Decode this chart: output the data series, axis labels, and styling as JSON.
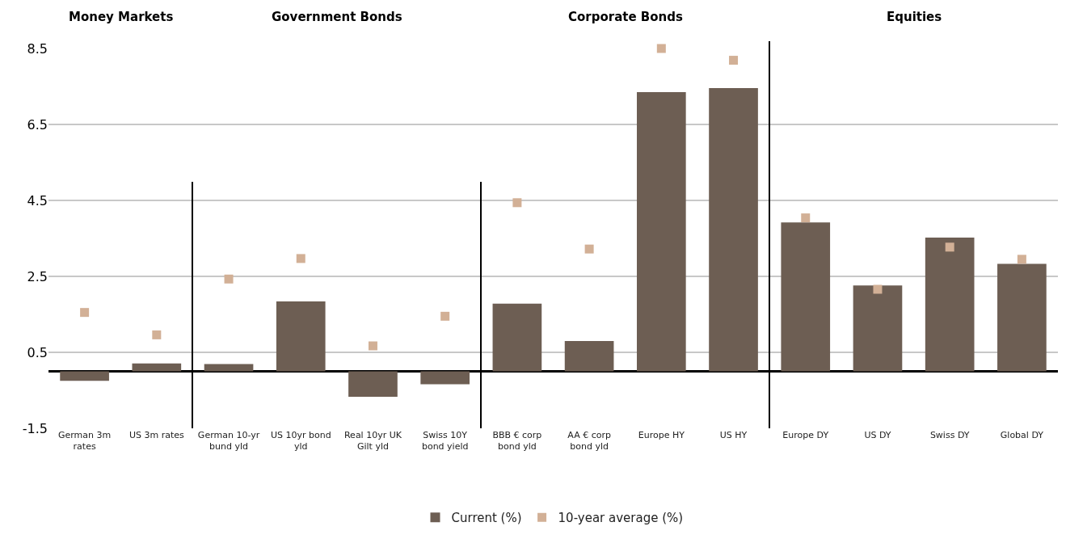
{
  "chart_data": {
    "type": "bar",
    "categories": [
      "German 3m rates",
      "US 3m rates",
      "German 10-yr bund yld",
      "US 10yr bond yld",
      "Real 10yr UK Gilt yld",
      "Swiss 10Y bond yield",
      "BBB € corp bond yld",
      "AA € corp bond yld",
      "Europe HY",
      "US HY",
      "Europe DY",
      "US DY",
      "Swiss DY",
      "Global DY"
    ],
    "series": [
      {
        "name": "Current (%)",
        "color": "#6d5e53",
        "values": [
          -0.25,
          0.21,
          0.19,
          1.84,
          -0.67,
          -0.34,
          1.78,
          0.8,
          7.35,
          7.46,
          3.92,
          2.26,
          3.52,
          2.83
        ]
      },
      {
        "name": "10-year average (%)",
        "type": "scatter",
        "color": "#d2b096",
        "values": [
          1.55,
          0.96,
          2.43,
          2.97,
          0.67,
          1.45,
          4.44,
          3.22,
          8.5,
          8.19,
          4.04,
          2.16,
          3.27,
          2.95
        ]
      }
    ],
    "annotations": [
      "Money Markets",
      "Government Bonds",
      "Corporate Bonds",
      "Equities"
    ],
    "ylim": [
      -1.5,
      8.5
    ],
    "yticks": [
      -1.5,
      0.5,
      2.5,
      4.5,
      6.5,
      8.5
    ],
    "grid": "y",
    "legend": "bottom"
  }
}
